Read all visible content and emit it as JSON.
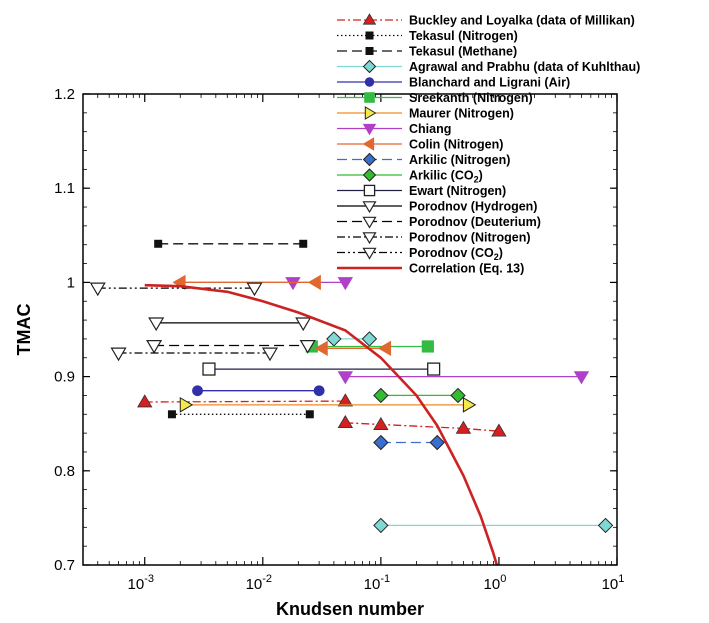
{
  "chart_data": {
    "type": "scatter",
    "title": "",
    "xlabel": "Knudsen number",
    "ylabel": "TMAC",
    "xscale": "log",
    "xlim": [
      0.0003,
      10
    ],
    "ylim": [
      0.7,
      1.2
    ],
    "xticks": [
      0.001,
      0.01,
      0.1,
      1,
      10
    ],
    "yticks": [
      0.7,
      0.8,
      0.9,
      1,
      1.1,
      1.2
    ],
    "xtick_labels": [
      {
        "base": "10",
        "exp": "-3"
      },
      {
        "base": "10",
        "exp": "-2"
      },
      {
        "base": "10",
        "exp": "-1"
      },
      {
        "base": "10",
        "exp": "0"
      },
      {
        "base": "10",
        "exp": "1"
      }
    ],
    "ytick_labels": [
      "0.7",
      "0.8",
      "0.9",
      "1",
      "1.1",
      "1.2"
    ],
    "legend_position": "top-right",
    "series": [
      {
        "name": "Buckley and Loyalka (data of Millikan)",
        "color": "#d62020",
        "marker": "triangle-up",
        "dash": "dashdot",
        "segments": [
          [
            [
              0.001,
              0.873
            ],
            [
              0.05,
              0.874
            ]
          ],
          [
            [
              0.05,
              0.851
            ],
            [
              0.5,
              0.845
            ],
            [
              1.0,
              0.842
            ]
          ]
        ],
        "points": [
          [
            0.001,
            0.873
          ],
          [
            0.05,
            0.874
          ],
          [
            0.05,
            0.851
          ],
          [
            0.1,
            0.849
          ],
          [
            0.5,
            0.845
          ],
          [
            1.0,
            0.842
          ]
        ]
      },
      {
        "name": "Tekasul (Nitrogen)",
        "color": "#111111",
        "marker": "square-small",
        "dash": "dotted",
        "segments": [
          [
            [
              0.0017,
              0.86
            ],
            [
              0.025,
              0.86
            ]
          ]
        ],
        "points": [
          [
            0.0017,
            0.86
          ],
          [
            0.025,
            0.86
          ]
        ]
      },
      {
        "name": "Tekasul (Methane)",
        "color": "#111111",
        "marker": "square-small",
        "dash": "longdash",
        "segments": [
          [
            [
              0.0013,
              1.041
            ],
            [
              0.022,
              1.041
            ]
          ]
        ],
        "points": [
          [
            0.0013,
            1.041
          ],
          [
            0.022,
            1.041
          ]
        ]
      },
      {
        "name": "Agrawal and Prabhu (data of Kuhlthau)",
        "color": "#7fd8d4",
        "marker": "diamond",
        "dash": "solid",
        "segments": [
          [
            [
              0.04,
              0.94
            ],
            [
              0.08,
              0.94
            ]
          ],
          [
            [
              0.1,
              0.742
            ],
            [
              8.0,
              0.742
            ]
          ]
        ],
        "points": [
          [
            0.04,
            0.94
          ],
          [
            0.08,
            0.94
          ],
          [
            0.1,
            0.742
          ],
          [
            8.0,
            0.742
          ]
        ]
      },
      {
        "name": "Blanchard and Ligrani (Air)",
        "color": "#3030a8",
        "marker": "circle",
        "dash": "solid",
        "segments": [
          [
            [
              0.0028,
              0.885
            ],
            [
              0.03,
              0.885
            ]
          ]
        ],
        "points": [
          [
            0.0028,
            0.885
          ],
          [
            0.03,
            0.885
          ]
        ]
      },
      {
        "name": "Sreekanth (Nitrogen)",
        "color": "#33bb44",
        "marker": "square",
        "dash": "solid",
        "segments": [
          [
            [
              0.026,
              0.932
            ],
            [
              0.25,
              0.932
            ]
          ]
        ],
        "points": [
          [
            0.026,
            0.932
          ],
          [
            0.25,
            0.932
          ]
        ]
      },
      {
        "name": "Maurer (Nitrogen)",
        "color": "#f08a20",
        "marker": "triangle-right",
        "dash": "solid",
        "segments": [
          [
            [
              0.0022,
              0.87
            ],
            [
              0.55,
              0.87
            ]
          ]
        ],
        "points": [
          [
            0.0022,
            0.87
          ],
          [
            0.55,
            0.87
          ]
        ]
      },
      {
        "name": "Chiang",
        "color": "#b040c8",
        "marker": "triangle-down",
        "dash": "solid",
        "segments": [
          [
            [
              0.05,
              0.9
            ],
            [
              5.0,
              0.9
            ]
          ],
          [
            [
              0.002,
              1.0
            ],
            [
              0.05,
              1.0
            ]
          ]
        ],
        "points": [
          [
            0.05,
            0.9
          ],
          [
            5.0,
            0.9
          ],
          [
            0.018,
            1.0
          ],
          [
            0.05,
            1.0
          ]
        ]
      },
      {
        "name": "Colin (Nitrogen)",
        "color": "#e06830",
        "marker": "triangle-left",
        "dash": "solid",
        "segments": [
          [
            [
              0.002,
              1.0
            ],
            [
              0.028,
              1.0
            ]
          ],
          [
            [
              0.032,
              0.93
            ],
            [
              0.11,
              0.93
            ]
          ]
        ],
        "points": [
          [
            0.002,
            1.0
          ],
          [
            0.028,
            1.0
          ],
          [
            0.032,
            0.93
          ],
          [
            0.11,
            0.93
          ]
        ]
      },
      {
        "name": "Arkilic (Nitrogen)",
        "color": "#3a6fd0",
        "marker": "diamond",
        "dash": "longdash",
        "segments": [
          [
            [
              0.1,
              0.83
            ],
            [
              0.3,
              0.83
            ]
          ]
        ],
        "points": [
          [
            0.1,
            0.83
          ],
          [
            0.3,
            0.83
          ]
        ]
      },
      {
        "name": "Arkilic (CO2)",
        "color": "#33bb33",
        "marker": "diamond",
        "dash": "solid",
        "segments": [
          [
            [
              0.1,
              0.88
            ],
            [
              0.45,
              0.88
            ]
          ]
        ],
        "points": [
          [
            0.1,
            0.88
          ],
          [
            0.45,
            0.88
          ]
        ]
      },
      {
        "name": "Ewart (Nitrogen)",
        "color": "#222244",
        "marker": "square-open",
        "dash": "solid",
        "segments": [
          [
            [
              0.0035,
              0.908
            ],
            [
              0.28,
              0.908
            ]
          ]
        ],
        "points": [
          [
            0.0035,
            0.908
          ],
          [
            0.28,
            0.908
          ]
        ]
      },
      {
        "name": "Porodnov (Hydrogen)",
        "color": "#000000",
        "marker": "triangle-down-open",
        "dash": "solid",
        "segments": [
          [
            [
              0.00125,
              0.957
            ],
            [
              0.022,
              0.957
            ]
          ]
        ],
        "points": [
          [
            0.00125,
            0.957
          ],
          [
            0.022,
            0.957
          ]
        ]
      },
      {
        "name": "Porodnov (Deuterium)",
        "color": "#000000",
        "marker": "triangle-down-open",
        "dash": "longdash",
        "segments": [
          [
            [
              0.0012,
              0.933
            ],
            [
              0.024,
              0.933
            ]
          ]
        ],
        "points": [
          [
            0.0012,
            0.933
          ],
          [
            0.024,
            0.933
          ]
        ]
      },
      {
        "name": "Porodnov (Nitrogen)",
        "color": "#000000",
        "marker": "triangle-down-open",
        "dash": "dashdot",
        "segments": [
          [
            [
              0.0006,
              0.925
            ],
            [
              0.0115,
              0.925
            ]
          ]
        ],
        "points": [
          [
            0.0006,
            0.925
          ],
          [
            0.0115,
            0.925
          ]
        ]
      },
      {
        "name": "Porodnov (CO2)",
        "color": "#000000",
        "marker": "triangle-down-open",
        "dash": "dashdotdot",
        "segments": [
          [
            [
              0.0004,
              0.994
            ],
            [
              0.0085,
              0.994
            ]
          ]
        ],
        "points": [
          [
            0.0004,
            0.994
          ],
          [
            0.0085,
            0.994
          ]
        ]
      },
      {
        "name": "Correlation (Eq. 13)",
        "color": "#cc2222",
        "marker": "none",
        "dash": "solid-thick",
        "curve": [
          [
            0.001,
            0.997
          ],
          [
            0.002,
            0.996
          ],
          [
            0.005,
            0.99
          ],
          [
            0.01,
            0.98
          ],
          [
            0.02,
            0.968
          ],
          [
            0.05,
            0.949
          ],
          [
            0.1,
            0.92
          ],
          [
            0.2,
            0.88
          ],
          [
            0.3,
            0.848
          ],
          [
            0.5,
            0.795
          ],
          [
            0.7,
            0.752
          ],
          [
            0.9,
            0.712
          ],
          [
            0.96,
            0.7
          ]
        ],
        "points": []
      }
    ],
    "legend": [
      {
        "label": "Buckley and Loyalka (data of Millikan)",
        "sub": ""
      },
      {
        "label": "Tekasul (Nitrogen)",
        "sub": ""
      },
      {
        "label": "Tekasul (Methane)",
        "sub": ""
      },
      {
        "label": "Agrawal and Prabhu (data of Kuhlthau)",
        "sub": ""
      },
      {
        "label": "Blanchard and Ligrani (Air)",
        "sub": ""
      },
      {
        "label": "Sreekanth (Nitrogen)",
        "sub": ""
      },
      {
        "label": "Maurer (Nitrogen)",
        "sub": ""
      },
      {
        "label": "Chiang",
        "sub": ""
      },
      {
        "label": "Colin (Nitrogen)",
        "sub": ""
      },
      {
        "label": "Arkilic (Nitrogen)",
        "sub": ""
      },
      {
        "label": "Arkilic (CO",
        "sub": "2",
        "suffix": ")"
      },
      {
        "label": "Ewart (Nitrogen)",
        "sub": ""
      },
      {
        "label": "Porodnov (Hydrogen)",
        "sub": ""
      },
      {
        "label": "Porodnov (Deuterium)",
        "sub": ""
      },
      {
        "label": "Porodnov (Nitrogen)",
        "sub": ""
      },
      {
        "label": "Porodnov (CO",
        "sub": "2",
        "suffix": ")"
      },
      {
        "label": "Correlation (Eq. 13)",
        "sub": ""
      }
    ]
  }
}
